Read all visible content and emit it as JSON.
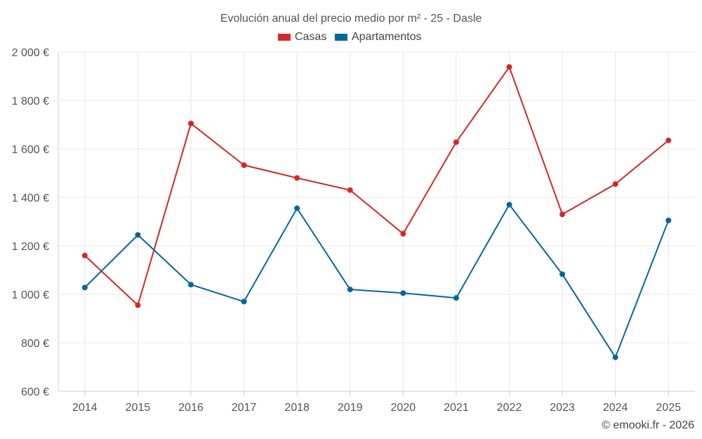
{
  "chart_data": {
    "type": "line",
    "title": "Evolución anual del precio medio por m² - 25 - Dasle",
    "categories": [
      "2014",
      "2015",
      "2016",
      "2017",
      "2018",
      "2019",
      "2020",
      "2021",
      "2022",
      "2023",
      "2024",
      "2025"
    ],
    "series": [
      {
        "name": "Casas",
        "color": "#d62728",
        "values": [
          1160,
          955,
          1705,
          1533,
          1480,
          1430,
          1250,
          1628,
          1938,
          1330,
          1455,
          1635
        ]
      },
      {
        "name": "Apartamentos",
        "color": "#04679c",
        "values": [
          1028,
          1245,
          1040,
          970,
          1355,
          1020,
          1005,
          985,
          1370,
          1083,
          740,
          1305
        ]
      }
    ],
    "ylim": [
      600,
      2000
    ],
    "yticks": [
      600,
      800,
      1000,
      1200,
      1400,
      1600,
      1800,
      2000
    ],
    "ytick_labels": [
      "600 €",
      "800 €",
      "1 000 €",
      "1 200 €",
      "1 400 €",
      "1 600 €",
      "1 800 €",
      "2 000 €"
    ],
    "xlabel": "",
    "ylabel": "",
    "grid": true,
    "legend_position": "top-center"
  },
  "credit": "© emooki.fr - 2026"
}
